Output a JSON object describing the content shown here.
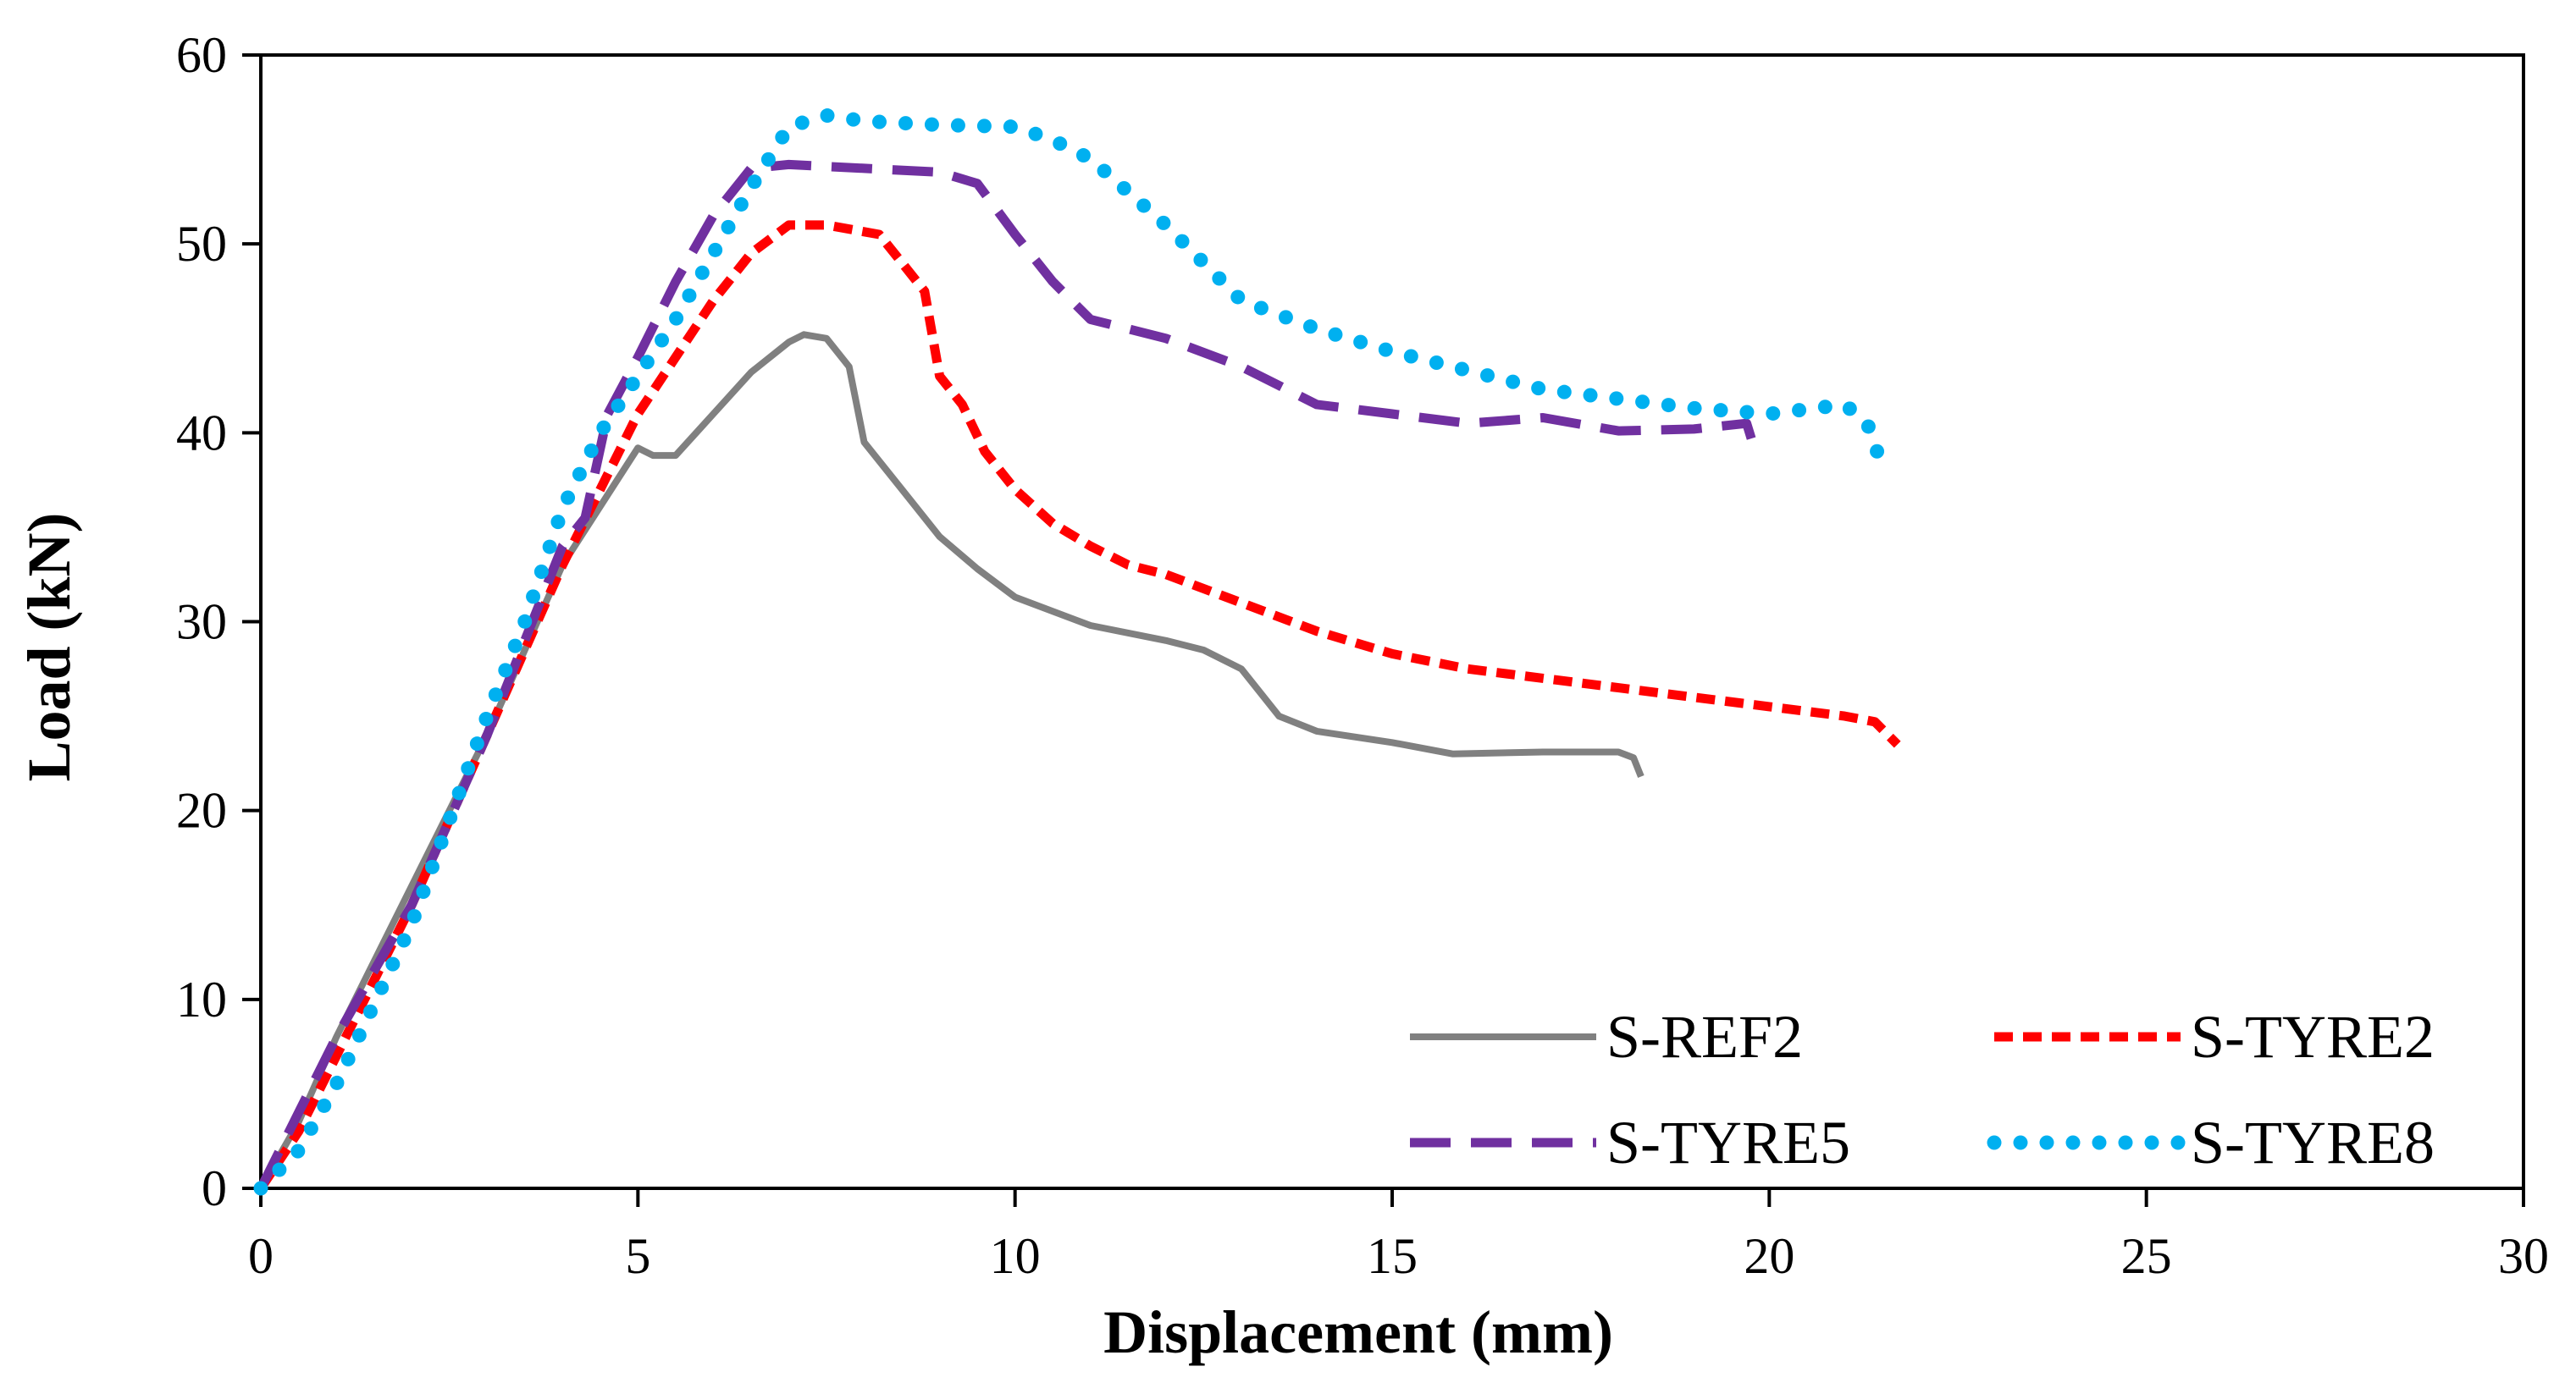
{
  "chart_data": {
    "type": "line",
    "title": "",
    "xlabel": "Displacement (mm)",
    "ylabel": "Load (kN)",
    "xlim": [
      0,
      30
    ],
    "ylim": [
      0,
      60
    ],
    "xticks": [
      "0",
      "5",
      "10",
      "15",
      "20",
      "25",
      "30"
    ],
    "yticks": [
      "0",
      "10",
      "20",
      "30",
      "40",
      "50",
      "60"
    ],
    "grid": false,
    "legend_position": "bottom-right",
    "series": [
      {
        "name": "S-REF2",
        "color": "#808080",
        "style": "solid",
        "points": [
          [
            0,
            0
          ],
          [
            0.5,
            3.5
          ],
          [
            1,
            8
          ],
          [
            2,
            16
          ],
          [
            3,
            24
          ],
          [
            4,
            33
          ],
          [
            5,
            39.2
          ],
          [
            5.2,
            38.8
          ],
          [
            5.5,
            38.8
          ],
          [
            6,
            41
          ],
          [
            6.5,
            43.2
          ],
          [
            7,
            44.8
          ],
          [
            7.2,
            45.2
          ],
          [
            7.5,
            45
          ],
          [
            7.8,
            43.5
          ],
          [
            7.9,
            41.5
          ],
          [
            8,
            39.5
          ],
          [
            8.5,
            37
          ],
          [
            9,
            34.5
          ],
          [
            9.5,
            32.8
          ],
          [
            10,
            31.3
          ],
          [
            11,
            29.8
          ],
          [
            12,
            29
          ],
          [
            12.5,
            28.5
          ],
          [
            13,
            27.5
          ],
          [
            13.5,
            25
          ],
          [
            14,
            24.2
          ],
          [
            15,
            23.6
          ],
          [
            15.8,
            23
          ],
          [
            17,
            23.1
          ],
          [
            18,
            23.1
          ],
          [
            18.2,
            22.8
          ],
          [
            18.3,
            21.8
          ]
        ]
      },
      {
        "name": "S-TYRE2",
        "color": "#ff0000",
        "style": "dashed",
        "points": [
          [
            0,
            0
          ],
          [
            0.5,
            3
          ],
          [
            1,
            7
          ],
          [
            2,
            15
          ],
          [
            3,
            24
          ],
          [
            4,
            33
          ],
          [
            5,
            41
          ],
          [
            6,
            47
          ],
          [
            6.5,
            49.5
          ],
          [
            7,
            51
          ],
          [
            7.5,
            51
          ],
          [
            8.2,
            50.5
          ],
          [
            8.5,
            49
          ],
          [
            8.8,
            47.5
          ],
          [
            9,
            43
          ],
          [
            9.3,
            41.5
          ],
          [
            9.6,
            39
          ],
          [
            10,
            37
          ],
          [
            10.5,
            35.2
          ],
          [
            11,
            34
          ],
          [
            11.5,
            33
          ],
          [
            12,
            32.5
          ],
          [
            13,
            31
          ],
          [
            14,
            29.5
          ],
          [
            15,
            28.3
          ],
          [
            16,
            27.5
          ],
          [
            17,
            27
          ],
          [
            18,
            26.5
          ],
          [
            19,
            26
          ],
          [
            20,
            25.5
          ],
          [
            21,
            25
          ],
          [
            21.4,
            24.7
          ],
          [
            21.7,
            23.5
          ]
        ]
      },
      {
        "name": "S-TYRE5",
        "color": "#7030a0",
        "style": "long-dash",
        "points": [
          [
            0,
            0
          ],
          [
            0.5,
            4
          ],
          [
            1,
            8
          ],
          [
            2,
            15
          ],
          [
            3,
            24
          ],
          [
            4,
            34
          ],
          [
            4.3,
            35.5
          ],
          [
            4.6,
            41
          ],
          [
            5,
            44
          ],
          [
            5.5,
            48
          ],
          [
            6,
            51.5
          ],
          [
            6.5,
            54
          ],
          [
            7,
            54.2
          ],
          [
            8,
            54
          ],
          [
            9,
            53.8
          ],
          [
            9.5,
            53.2
          ],
          [
            10,
            50.5
          ],
          [
            10.5,
            48
          ],
          [
            11,
            46
          ],
          [
            12,
            45
          ],
          [
            13,
            43.5
          ],
          [
            13.5,
            42.5
          ],
          [
            14,
            41.5
          ],
          [
            15,
            41
          ],
          [
            16,
            40.5
          ],
          [
            17,
            40.8
          ],
          [
            18,
            40.1
          ],
          [
            19,
            40.2
          ],
          [
            19.7,
            40.5
          ],
          [
            19.8,
            39.2
          ]
        ]
      },
      {
        "name": "S-TYRE8",
        "color": "#00b0f0",
        "style": "dotted",
        "points": [
          [
            0,
            0
          ],
          [
            0.5,
            2
          ],
          [
            1,
            5.5
          ],
          [
            2,
            14
          ],
          [
            3,
            25
          ],
          [
            3.5,
            30
          ],
          [
            4,
            36
          ],
          [
            4.5,
            40
          ],
          [
            5,
            43
          ],
          [
            5.5,
            46
          ],
          [
            6,
            49.5
          ],
          [
            6.5,
            53
          ],
          [
            7,
            56.2
          ],
          [
            7.5,
            56.8
          ],
          [
            8,
            56.5
          ],
          [
            9,
            56.3
          ],
          [
            10,
            56.2
          ],
          [
            10.5,
            55.5
          ],
          [
            11,
            54.5
          ],
          [
            12,
            51
          ],
          [
            13,
            47
          ],
          [
            14,
            45.5
          ],
          [
            15,
            44.3
          ],
          [
            16,
            43.3
          ],
          [
            17,
            42.3
          ],
          [
            18,
            41.8
          ],
          [
            19,
            41.3
          ],
          [
            20,
            41
          ],
          [
            21,
            41.5
          ],
          [
            21.3,
            40.5
          ],
          [
            21.5,
            38.2
          ]
        ]
      }
    ]
  }
}
